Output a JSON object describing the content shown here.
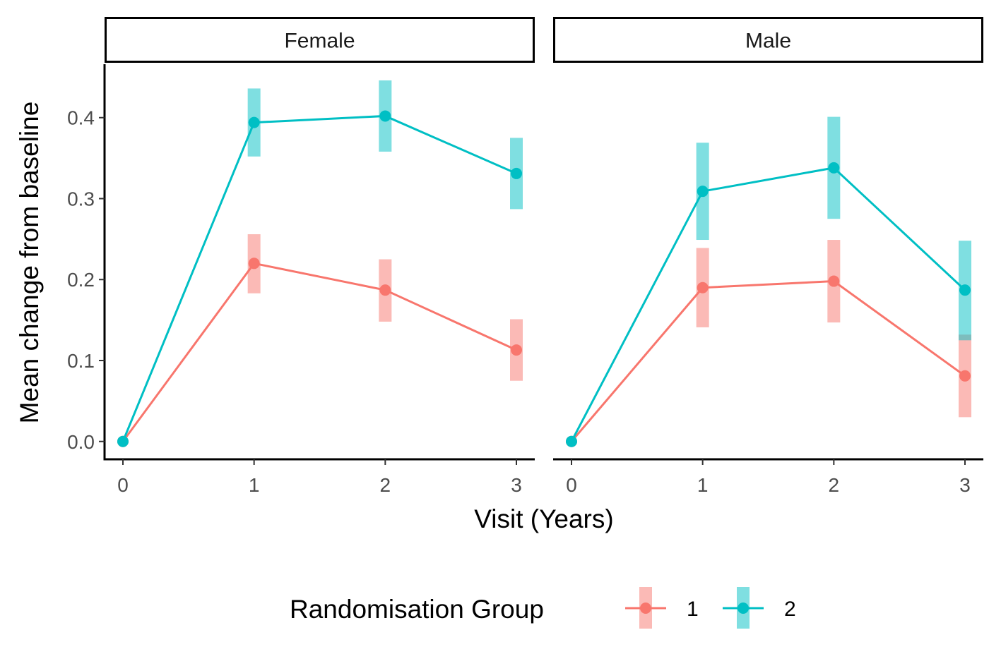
{
  "chart_data": {
    "type": "line",
    "xlabel": "Visit (Years)",
    "ylabel": "Mean change from baseline",
    "xlim": [
      -0.14,
      3.14
    ],
    "ylim": [
      -0.022,
      0.466
    ],
    "x_ticks": [
      0,
      1,
      2,
      3
    ],
    "y_ticks": [
      0.0,
      0.1,
      0.2,
      0.3,
      0.4
    ],
    "y_tick_labels": [
      "0.0",
      "0.1",
      "0.2",
      "0.3",
      "0.4"
    ],
    "grid": false,
    "legend": {
      "title": "Randomisation Group",
      "position": "bottom",
      "entries": [
        "1",
        "2"
      ]
    },
    "colors": {
      "1": "#F8766D",
      "2": "#00BFC4"
    },
    "panels": [
      {
        "label": "Female",
        "series": [
          {
            "name": "1",
            "x": [
              0,
              1,
              2,
              3
            ],
            "y": [
              0.0,
              0.22,
              0.187,
              0.113
            ],
            "lower": [
              0.0,
              0.183,
              0.148,
              0.075
            ],
            "upper": [
              0.0,
              0.256,
              0.225,
              0.151
            ]
          },
          {
            "name": "2",
            "x": [
              0,
              1,
              2,
              3
            ],
            "y": [
              0.0,
              0.394,
              0.402,
              0.331
            ],
            "lower": [
              0.0,
              0.352,
              0.358,
              0.287
            ],
            "upper": [
              0.0,
              0.436,
              0.446,
              0.375
            ]
          }
        ]
      },
      {
        "label": "Male",
        "series": [
          {
            "name": "1",
            "x": [
              0,
              1,
              2,
              3
            ],
            "y": [
              0.0,
              0.19,
              0.198,
              0.081
            ],
            "lower": [
              0.0,
              0.141,
              0.147,
              0.03
            ],
            "upper": [
              0.0,
              0.239,
              0.249,
              0.132
            ]
          },
          {
            "name": "2",
            "x": [
              0,
              1,
              2,
              3
            ],
            "y": [
              0.0,
              0.309,
              0.338,
              0.187
            ],
            "lower": [
              0.0,
              0.249,
              0.275,
              0.125
            ],
            "upper": [
              0.0,
              0.369,
              0.401,
              0.248
            ]
          }
        ]
      }
    ]
  }
}
